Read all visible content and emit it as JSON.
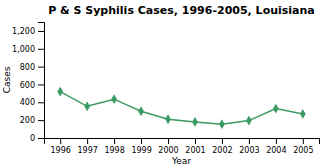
{
  "chart_data": {
    "type": "line",
    "title": "P & S Syphilis Cases, 1996-2005, Louisiana",
    "xlabel": "Year",
    "ylabel": "Cases",
    "x": [
      1996,
      1997,
      1998,
      1999,
      2000,
      2001,
      2002,
      2003,
      2004,
      2005
    ],
    "values": [
      520,
      355,
      435,
      300,
      210,
      180,
      155,
      195,
      330,
      270
    ],
    "color": "#3a9a60",
    "marker": "diamond",
    "xlim": [
      1995.4,
      2005.6
    ],
    "ylim": [
      0,
      1300
    ],
    "xticks": [
      1996,
      1997,
      1998,
      1999,
      2000,
      2001,
      2002,
      2003,
      2004,
      2005
    ],
    "yticks": [
      0,
      200,
      400,
      600,
      800,
      {
        "value": 1000,
        "label": "1,000"
      },
      {
        "value": 1200,
        "label": "1,200"
      }
    ],
    "grid": false
  }
}
